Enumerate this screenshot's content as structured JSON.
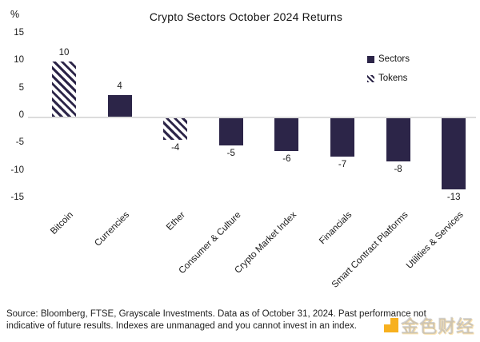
{
  "chart_data": {
    "type": "bar",
    "title": "Crypto Sectors October 2024 Returns",
    "xlabel": "",
    "ylabel": "%",
    "ylim": [
      -16,
      16
    ],
    "yticks": [
      15,
      10,
      5,
      0,
      -5,
      -10,
      -15
    ],
    "grid": false,
    "legend_position": "upper right",
    "categories": [
      "Bitcoin",
      "Currencies",
      "Ether",
      "Consumer & Culture",
      "Crypto Market Index",
      "Financials",
      "Smart Contract Platforms",
      "Utilities & Services"
    ],
    "values": [
      10,
      4,
      -4,
      -5,
      -6,
      -7,
      -8,
      -13
    ],
    "bar_styles": [
      "hatched",
      "solid",
      "hatched",
      "solid",
      "solid",
      "solid",
      "solid",
      "solid"
    ],
    "legend": [
      {
        "label": "Sectors",
        "style": "solid"
      },
      {
        "label": "Tokens",
        "style": "hatched"
      }
    ],
    "colors": {
      "bar": "#2C2548",
      "axis_line": "#DCDCDC",
      "text": "#1A1A1A"
    }
  },
  "footer": {
    "line1": "Source: Bloomberg, FTSE, Grayscale Investments. Data as of October 31, 2024. Past performance not",
    "line2": "indicative of future results. Indexes are unmanaged and you cannot invest in an index."
  },
  "watermark": {
    "text": "金色财经",
    "accent_color": "#F7A600"
  }
}
